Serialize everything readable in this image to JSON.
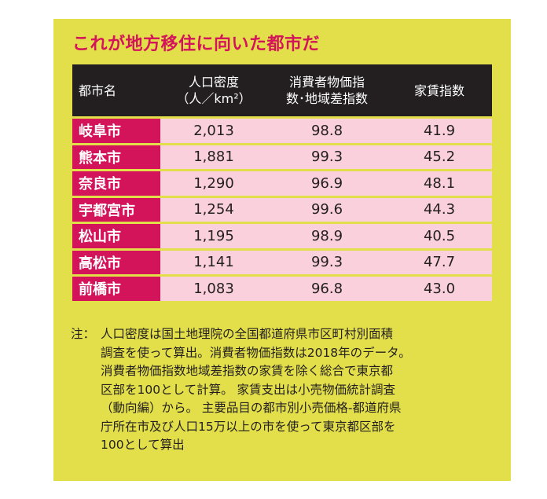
{
  "title": "これが地方移住に向いた都市だ",
  "headers": {
    "city": "都市名",
    "density_l1": "人口密度",
    "density_l2": "（人／km²）",
    "cpi_l1": "消費者物価指",
    "cpi_l2": "数･地域差指数",
    "rent": "家賃指数"
  },
  "rows": [
    {
      "city": "岐阜市",
      "density": "2,013",
      "cpi": "98.8",
      "rent": "41.9"
    },
    {
      "city": "熊本市",
      "density": "1,881",
      "cpi": "99.3",
      "rent": "45.2"
    },
    {
      "city": "奈良市",
      "density": "1,290",
      "cpi": "96.9",
      "rent": "48.1"
    },
    {
      "city": "宇都宮市",
      "density": "1,254",
      "cpi": "99.6",
      "rent": "44.3"
    },
    {
      "city": "松山市",
      "density": "1,195",
      "cpi": "98.9",
      "rent": "40.5"
    },
    {
      "city": "高松市",
      "density": "1,141",
      "cpi": "99.3",
      "rent": "47.7"
    },
    {
      "city": "前橋市",
      "density": "1,083",
      "cpi": "96.8",
      "rent": "43.0"
    }
  ],
  "note": {
    "label": "注：",
    "lines": [
      "人口密度は国土地理院の全国都道府県市区町村別面積",
      "調査を使って算出。消費者物価指数は2018年のデータ。",
      "消費者物価指数地域差指数の家賃を除く総合で東京都",
      "区部を100として計算。 家賃支出は小売物価統計調査",
      "（動向編）から。 主要品目の都市別小売価格-都道府県",
      "庁所在市及び人口15万以上の市を使って東京都区部を",
      "100として算出"
    ]
  },
  "colors": {
    "panel_bg": "#e3df4a",
    "title": "#d4145a",
    "header_bg": "#231f20",
    "city_cell_bg": "#d4145a",
    "value_cell_bg": "#f9d0dc"
  }
}
